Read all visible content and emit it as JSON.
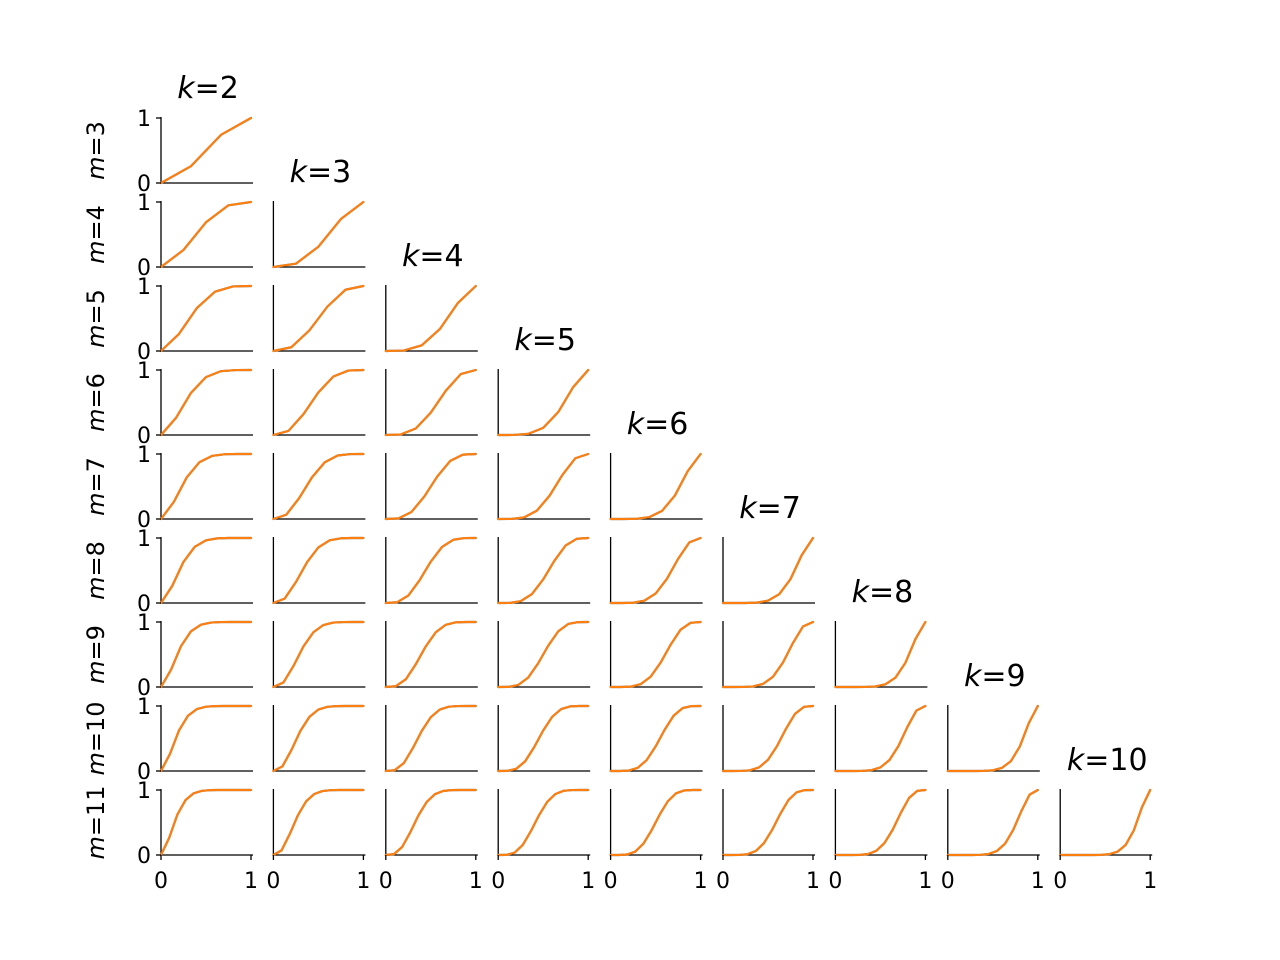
{
  "chart_data": {
    "type": "line",
    "description_layout": "lower-triangular grid of small line plots",
    "columns": [
      {
        "k": 2,
        "title_var": "k",
        "title_eq": "=2"
      },
      {
        "k": 3,
        "title_var": "k",
        "title_eq": "=3"
      },
      {
        "k": 4,
        "title_var": "k",
        "title_eq": "=4"
      },
      {
        "k": 5,
        "title_var": "k",
        "title_eq": "=5"
      },
      {
        "k": 6,
        "title_var": "k",
        "title_eq": "=6"
      },
      {
        "k": 7,
        "title_var": "k",
        "title_eq": "=7"
      },
      {
        "k": 8,
        "title_var": "k",
        "title_eq": "=8"
      },
      {
        "k": 9,
        "title_var": "k",
        "title_eq": "=9"
      },
      {
        "k": 10,
        "title_var": "k",
        "title_eq": "=10"
      }
    ],
    "rows": [
      {
        "m": 3,
        "label": "m=3"
      },
      {
        "m": 4,
        "label": "m=4"
      },
      {
        "m": 5,
        "label": "m=5"
      },
      {
        "m": 6,
        "label": "m=6"
      },
      {
        "m": 7,
        "label": "m=7"
      },
      {
        "m": 8,
        "label": "m=8"
      },
      {
        "m": 9,
        "label": "m=9"
      },
      {
        "m": 10,
        "label": "m=10"
      },
      {
        "m": 11,
        "label": "m=11"
      }
    ],
    "xlim": [
      0,
      1
    ],
    "ylim": [
      0,
      1
    ],
    "xticks": [
      "0",
      "1"
    ],
    "yticks": [
      "0",
      "1"
    ],
    "series_colors": [
      "#1f77b4",
      "#ff7f0e"
    ],
    "curve_model": "binomial tail probability P(Bin(m, p) >= k) vs p, sampled at m+1 points",
    "grid": false,
    "legend": "none"
  }
}
